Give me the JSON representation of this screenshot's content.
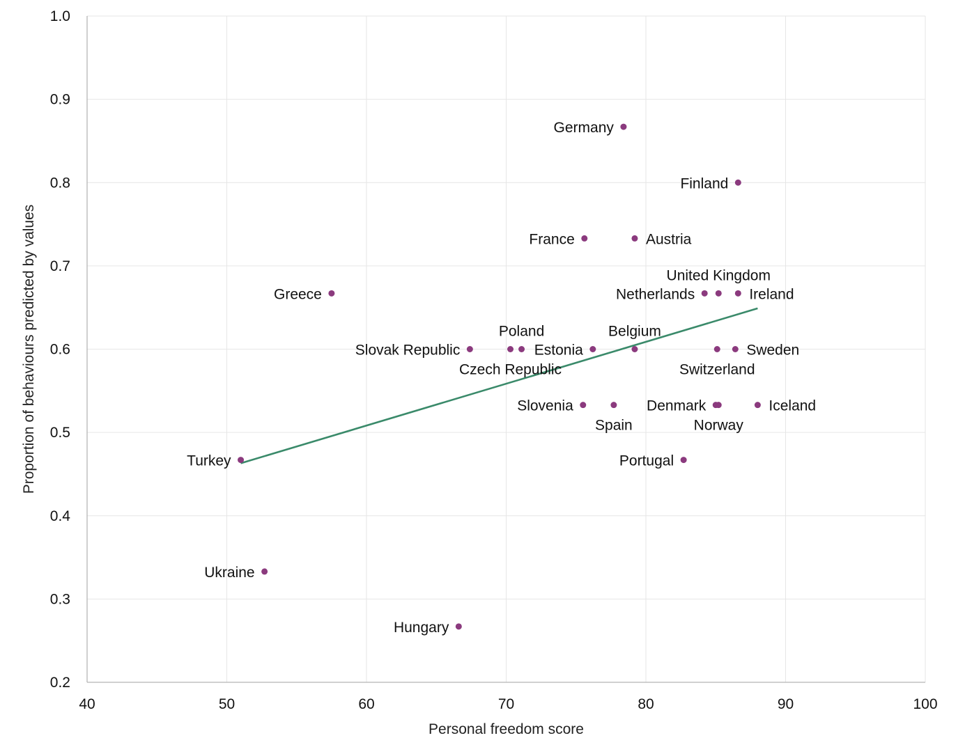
{
  "chart_data": {
    "type": "scatter",
    "xlabel": "Personal freedom score",
    "ylabel": "Proportion of behaviours predicted by values",
    "xlim": [
      40,
      100
    ],
    "ylim": [
      0.2,
      1.0
    ],
    "xticks": [
      "40",
      "50",
      "60",
      "70",
      "80",
      "90",
      "100"
    ],
    "yticks": [
      "0.2",
      "0.3",
      "0.4",
      "0.5",
      "0.6",
      "0.7",
      "0.8",
      "0.9",
      "1.0"
    ],
    "grid": true,
    "marker_color": "#8b3a7e",
    "trendline_color": "#3a8a6a",
    "trendline": {
      "x": [
        51.0,
        88.0
      ],
      "y": [
        0.463,
        0.649
      ]
    },
    "points": [
      {
        "label": "Germany",
        "x": 78.4,
        "y": 0.867,
        "label_pos": "left"
      },
      {
        "label": "Finland",
        "x": 86.6,
        "y": 0.8,
        "label_pos": "left"
      },
      {
        "label": "France",
        "x": 75.6,
        "y": 0.733,
        "label_pos": "left"
      },
      {
        "label": "Austria",
        "x": 79.2,
        "y": 0.733,
        "label_pos": "right"
      },
      {
        "label": "United Kingdom",
        "x": 85.2,
        "y": 0.667,
        "label_pos": "above"
      },
      {
        "label": "Netherlands",
        "x": 84.2,
        "y": 0.667,
        "label_pos": "left"
      },
      {
        "label": "Ireland",
        "x": 86.6,
        "y": 0.667,
        "label_pos": "right"
      },
      {
        "label": "Greece",
        "x": 57.5,
        "y": 0.667,
        "label_pos": "left"
      },
      {
        "label": "Poland",
        "x": 71.1,
        "y": 0.6,
        "label_pos": "above"
      },
      {
        "label": "Slovak Republic",
        "x": 67.4,
        "y": 0.6,
        "label_pos": "left"
      },
      {
        "label": "Czech Republic",
        "x": 70.3,
        "y": 0.6,
        "label_pos": "below"
      },
      {
        "label": "Estonia",
        "x": 76.2,
        "y": 0.6,
        "label_pos": "left"
      },
      {
        "label": "Belgium",
        "x": 79.2,
        "y": 0.6,
        "label_pos": "above"
      },
      {
        "label": "Switzerland",
        "x": 85.1,
        "y": 0.6,
        "label_pos": "below"
      },
      {
        "label": "Sweden",
        "x": 86.4,
        "y": 0.6,
        "label_pos": "right"
      },
      {
        "label": "Slovenia",
        "x": 75.5,
        "y": 0.533,
        "label_pos": "left"
      },
      {
        "label": "Spain",
        "x": 77.7,
        "y": 0.533,
        "label_pos": "below"
      },
      {
        "label": "Denmark",
        "x": 85.0,
        "y": 0.533,
        "label_pos": "left"
      },
      {
        "label": "Norway",
        "x": 85.2,
        "y": 0.533,
        "label_pos": "below"
      },
      {
        "label": "Iceland",
        "x": 88.0,
        "y": 0.533,
        "label_pos": "right"
      },
      {
        "label": "Turkey",
        "x": 51.0,
        "y": 0.467,
        "label_pos": "left"
      },
      {
        "label": "Portugal",
        "x": 82.7,
        "y": 0.467,
        "label_pos": "left"
      },
      {
        "label": "Ukraine",
        "x": 52.7,
        "y": 0.333,
        "label_pos": "left"
      },
      {
        "label": "Hungary",
        "x": 66.6,
        "y": 0.267,
        "label_pos": "left"
      }
    ]
  }
}
